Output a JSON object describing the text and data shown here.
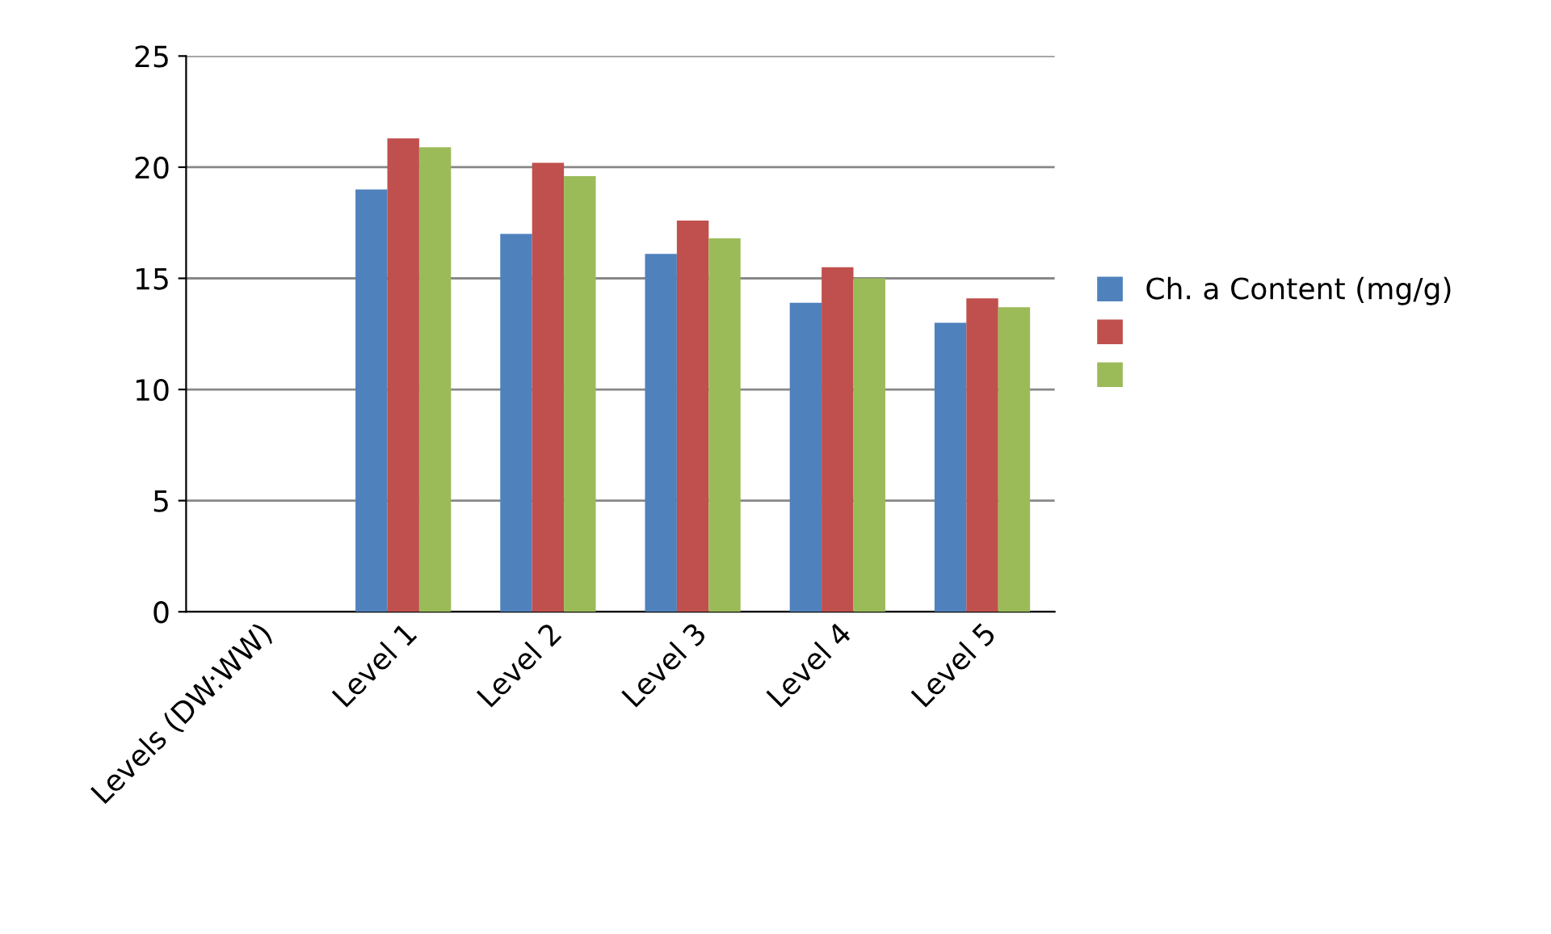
{
  "chart_data": {
    "type": "bar",
    "categories": [
      "Levels (DW:WW)",
      "Level 1",
      "Level 2",
      "Level 3",
      "Level 4",
      "Level 5"
    ],
    "series": [
      {
        "name": "Ch. a Content (mg/g)",
        "color": "#4f81bd",
        "values": [
          null,
          19.0,
          17.0,
          16.1,
          13.9,
          13.0
        ]
      },
      {
        "color": "#c0504d",
        "values": [
          null,
          21.3,
          20.2,
          17.6,
          15.5,
          14.1
        ]
      },
      {
        "color": "#9bbb59",
        "values": [
          null,
          20.9,
          19.6,
          16.8,
          15.0,
          13.7
        ]
      }
    ],
    "ylim": [
      0,
      25
    ],
    "yticks": [
      0,
      5,
      10,
      15,
      20,
      25
    ],
    "grid": "y",
    "legend": "right"
  }
}
